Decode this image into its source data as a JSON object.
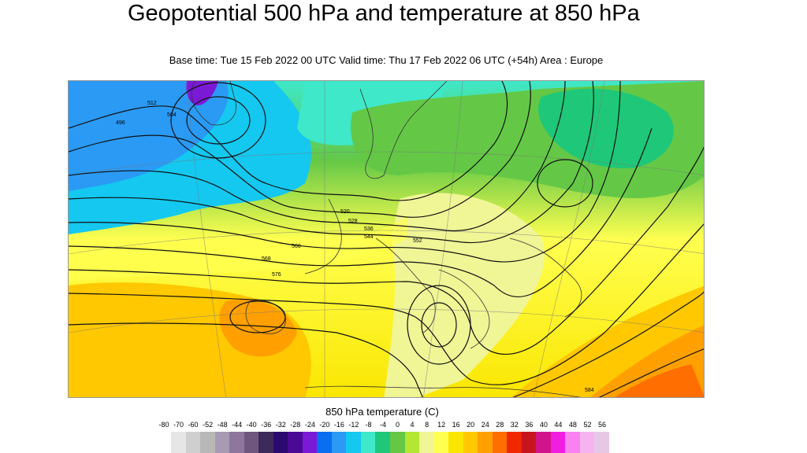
{
  "title": "Geopotential 500 hPa and temperature at 850 hPa",
  "subtitle": "Base time: Tue 15 Feb 2022 00 UTC Valid time: Thu 17 Feb 2022 06 UTC (+54h) Area : Europe",
  "map": {
    "contour_labels": [
      "512",
      "520",
      "528",
      "536",
      "544",
      "552",
      "560",
      "568",
      "576",
      "584",
      "504",
      "496"
    ]
  },
  "legend": {
    "title": "850 hPa temperature (C)",
    "ticks": [
      "-80",
      "-70",
      "-60",
      "-52",
      "-48",
      "-44",
      "-40",
      "-36",
      "-32",
      "-28",
      "-24",
      "-20",
      "-16",
      "-12",
      "-8",
      "-4",
      "0",
      "4",
      "8",
      "12",
      "16",
      "20",
      "24",
      "28",
      "32",
      "36",
      "40",
      "44",
      "48",
      "52",
      "56"
    ],
    "colors": [
      "#e6e6e6",
      "#cfcfcf",
      "#b8b8b8",
      "#a79ab2",
      "#8e769c",
      "#6e567f",
      "#3c2a5a",
      "#2a0a6e",
      "#4b0a96",
      "#7a1ad6",
      "#0a6ef0",
      "#2a9af5",
      "#14c8f0",
      "#3ee8c8",
      "#1ec878",
      "#64c846",
      "#b4e632",
      "#f0f596",
      "#ffff50",
      "#fae600",
      "#ffc800",
      "#ffa000",
      "#ff6e00",
      "#f02800",
      "#c8141e",
      "#d2148c",
      "#f01ede",
      "#fa82f0",
      "#f5b4f0",
      "#e6c8e6"
    ]
  }
}
